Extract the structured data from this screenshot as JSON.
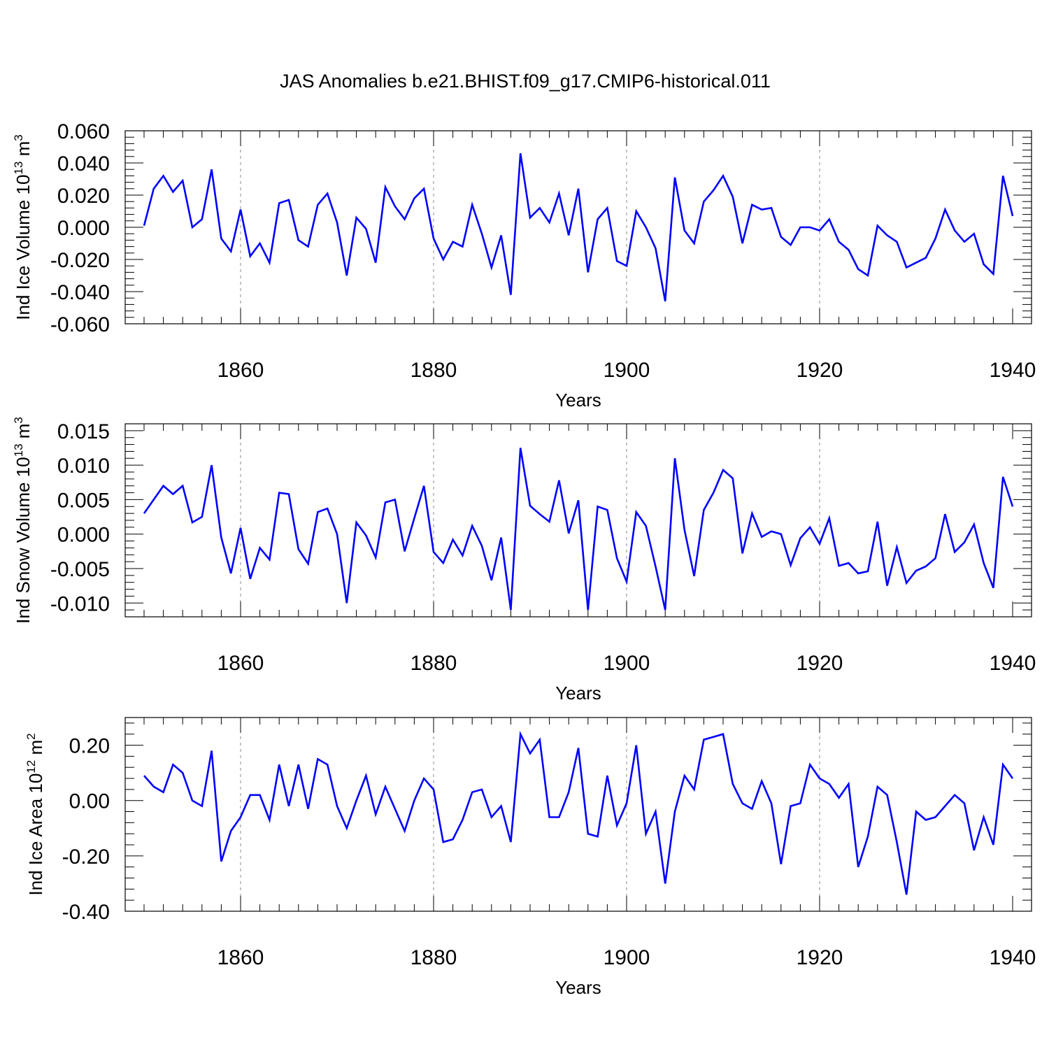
{
  "title": "JAS Anomalies b.e21.BHIST.f09_g17.CMIP6-historical.011",
  "colors": {
    "series": "#0000ff",
    "axis": "#000000",
    "grid": "#888888"
  },
  "chart_data": [
    {
      "type": "line",
      "title": "JAS Anomalies b.e21.BHIST.f09_g17.CMIP6-historical.011",
      "xlabel": "Years",
      "ylabel": {
        "base": "Ind Ice Volume 10",
        "exponent": "13",
        "unit": " m",
        "unit_exponent": "3"
      },
      "xlim": [
        1850,
        1940
      ],
      "ylim": [
        -0.06,
        0.06
      ],
      "xticks": [
        1860,
        1880,
        1900,
        1920,
        1940
      ],
      "xtick_labels": [
        "1860",
        "1880",
        "1900",
        "1920",
        "1940"
      ],
      "yticks": [
        -0.06,
        -0.04,
        -0.02,
        0.0,
        0.02,
        0.04,
        0.06
      ],
      "ytick_labels": [
        "-0.060",
        "-0.040",
        "-0.020",
        "0.000",
        "0.020",
        "0.040",
        "0.060"
      ],
      "grid_x": [
        1860,
        1880,
        1900,
        1920
      ],
      "series": [
        {
          "name": "Ind Ice Volume",
          "x_start": 1850,
          "values": [
            0.001,
            0.024,
            0.032,
            0.022,
            0.029,
            0.0,
            0.005,
            0.036,
            -0.007,
            -0.015,
            0.011,
            -0.018,
            -0.01,
            -0.022,
            0.015,
            0.017,
            -0.008,
            -0.012,
            0.014,
            0.021,
            0.003,
            -0.03,
            0.006,
            -0.001,
            -0.022,
            0.025,
            0.013,
            0.005,
            0.018,
            0.024,
            -0.007,
            -0.02,
            -0.009,
            -0.012,
            0.014,
            -0.004,
            -0.025,
            -0.005,
            -0.042,
            0.046,
            0.006,
            0.012,
            0.003,
            0.021,
            -0.005,
            0.024,
            -0.028,
            0.005,
            0.012,
            -0.021,
            -0.024,
            0.01,
            0.0,
            -0.013,
            -0.046,
            0.031,
            -0.002,
            -0.01,
            0.016,
            0.023,
            0.032,
            0.019,
            -0.01,
            0.014,
            0.011,
            0.012,
            -0.006,
            -0.011,
            0.0,
            0.0,
            -0.002,
            0.005,
            -0.009,
            -0.014,
            -0.026,
            -0.03,
            0.001,
            -0.005,
            -0.009,
            -0.025,
            -0.022,
            -0.019,
            -0.007,
            0.011,
            -0.002,
            -0.009,
            -0.004,
            -0.023,
            -0.029,
            0.032,
            0.007
          ]
        }
      ]
    },
    {
      "type": "line",
      "xlabel": "Years",
      "ylabel": {
        "base": "Ind Snow Volume 10",
        "exponent": "13",
        "unit": " m",
        "unit_exponent": "3"
      },
      "xlim": [
        1850,
        1940
      ],
      "ylim": [
        -0.012,
        0.016
      ],
      "xticks": [
        1860,
        1880,
        1900,
        1920,
        1940
      ],
      "xtick_labels": [
        "1860",
        "1880",
        "1900",
        "1920",
        "1940"
      ],
      "yticks": [
        -0.01,
        -0.005,
        0.0,
        0.005,
        0.01,
        0.015
      ],
      "ytick_labels": [
        "-0.010",
        "-0.005",
        "0.000",
        "0.005",
        "0.010",
        "0.015"
      ],
      "grid_x": [
        1860,
        1880,
        1900,
        1920
      ],
      "series": [
        {
          "name": "Ind Snow Volume",
          "x_start": 1850,
          "values": [
            0.003,
            0.005,
            0.007,
            0.0058,
            0.007,
            0.0017,
            0.0025,
            0.01,
            -0.0005,
            -0.0057,
            0.0009,
            -0.0065,
            -0.002,
            -0.0037,
            0.006,
            0.0058,
            -0.0022,
            -0.0043,
            0.0032,
            0.0037,
            0.0,
            -0.01,
            0.0017,
            -0.0002,
            -0.0034,
            0.0046,
            0.005,
            -0.0025,
            0.0023,
            0.007,
            -0.0026,
            -0.0042,
            -0.0008,
            -0.0031,
            0.0012,
            -0.0017,
            -0.0067,
            -0.0005,
            -0.011,
            0.0125,
            0.0041,
            0.0029,
            0.0018,
            0.0078,
            0.0001,
            0.0049,
            -0.011,
            0.004,
            0.0035,
            -0.0035,
            -0.0069,
            0.0032,
            0.0012,
            -0.0047,
            -0.011,
            0.011,
            0.0006,
            -0.0061,
            0.0035,
            0.006,
            0.0093,
            0.0081,
            -0.0028,
            0.003,
            -0.0004,
            0.0004,
            0.0,
            -0.0045,
            -0.0006,
            0.001,
            -0.0014,
            0.0023,
            -0.0046,
            -0.0042,
            -0.0057,
            -0.0054,
            0.0018,
            -0.0075,
            -0.0019,
            -0.0071,
            -0.0053,
            -0.0047,
            -0.0035,
            0.0029,
            -0.0026,
            -0.0012,
            0.0014,
            -0.0042,
            -0.0078,
            0.0083,
            0.004
          ]
        }
      ]
    },
    {
      "type": "line",
      "xlabel": "Years",
      "ylabel": {
        "base": "Ind Ice Area 10",
        "exponent": "12",
        "unit": " m",
        "unit_exponent": "2"
      },
      "xlim": [
        1850,
        1940
      ],
      "ylim": [
        -0.4,
        0.3
      ],
      "xticks": [
        1860,
        1880,
        1900,
        1920,
        1940
      ],
      "xtick_labels": [
        "1860",
        "1880",
        "1900",
        "1920",
        "1940"
      ],
      "yticks": [
        -0.4,
        -0.2,
        0.0,
        0.2
      ],
      "ytick_labels": [
        "-0.40",
        "-0.20",
        "0.00",
        "0.20"
      ],
      "grid_x": [
        1860,
        1880,
        1900,
        1920
      ],
      "series": [
        {
          "name": "Ind Ice Area",
          "x_start": 1850,
          "values": [
            0.09,
            0.05,
            0.03,
            0.13,
            0.1,
            0.0,
            -0.02,
            0.18,
            -0.22,
            -0.11,
            -0.06,
            0.02,
            0.02,
            -0.07,
            0.13,
            -0.02,
            0.13,
            -0.03,
            0.15,
            0.13,
            -0.02,
            -0.1,
            0.0,
            0.09,
            -0.05,
            0.05,
            -0.03,
            -0.11,
            0.0,
            0.08,
            0.04,
            -0.15,
            -0.14,
            -0.07,
            0.03,
            0.04,
            -0.06,
            -0.02,
            -0.15,
            0.24,
            0.17,
            0.22,
            -0.06,
            -0.06,
            0.03,
            0.19,
            -0.12,
            -0.13,
            0.09,
            -0.09,
            -0.01,
            0.2,
            -0.12,
            -0.04,
            -0.3,
            -0.04,
            0.09,
            0.04,
            0.22,
            0.23,
            0.24,
            0.06,
            -0.01,
            -0.03,
            0.07,
            -0.01,
            -0.23,
            -0.02,
            -0.01,
            0.13,
            0.08,
            0.06,
            0.01,
            0.06,
            -0.24,
            -0.13,
            0.05,
            0.02,
            -0.15,
            -0.34,
            -0.04,
            -0.07,
            -0.06,
            -0.02,
            0.02,
            -0.01,
            -0.18,
            -0.06,
            -0.16,
            0.13,
            0.08
          ]
        }
      ]
    }
  ]
}
